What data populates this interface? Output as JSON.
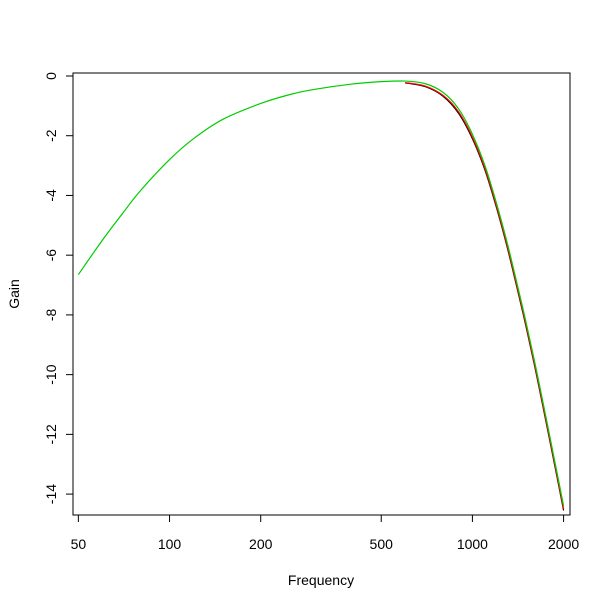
{
  "chart_data": {
    "type": "line",
    "title": "",
    "xlabel": "Frequency",
    "ylabel": "Gain",
    "x_scale": "log",
    "xlim": [
      48,
      2100
    ],
    "ylim": [
      -14.7,
      0.1
    ],
    "x_ticks": [
      50,
      100,
      200,
      500,
      1000,
      2000
    ],
    "x_tick_labels": [
      "50",
      "100",
      "200",
      "500",
      "1000",
      "2000"
    ],
    "y_ticks": [
      0,
      -2,
      -4,
      -6,
      -8,
      -10,
      -12,
      -14
    ],
    "y_tick_labels": [
      "0",
      "-2",
      "-4",
      "-6",
      "-8",
      "-10",
      "-12",
      "-14"
    ],
    "grid": false,
    "legend": "none",
    "series": [
      {
        "color": "#000000",
        "x": [
          600,
          700,
          800,
          900,
          1000,
          1100,
          1200,
          1300,
          1400,
          1500,
          1600,
          1700,
          1800,
          1900,
          2000
        ],
        "y": [
          -0.23,
          -0.36,
          -0.68,
          -1.25,
          -2.1,
          -3.15,
          -4.4,
          -5.7,
          -7.05,
          -8.35,
          -9.65,
          -10.95,
          -12.2,
          -13.4,
          -14.55
        ]
      },
      {
        "color": "#ff0000",
        "x": [
          600,
          700,
          800,
          900,
          1000,
          1100,
          1200,
          1300,
          1400,
          1500,
          1600,
          1700,
          1800,
          1900,
          2000
        ],
        "y": [
          -0.22,
          -0.34,
          -0.65,
          -1.2,
          -2.05,
          -3.1,
          -4.35,
          -5.65,
          -7.0,
          -8.3,
          -9.6,
          -10.9,
          -12.15,
          -13.35,
          -14.5
        ]
      },
      {
        "color": "#00cc00",
        "x": [
          50,
          60,
          70,
          80,
          100,
          120,
          150,
          200,
          250,
          300,
          400,
          500,
          600,
          700,
          800,
          900,
          1000,
          1100,
          1200,
          1300,
          1400,
          1500,
          1600,
          1700,
          1800,
          1900,
          2000
        ],
        "y": [
          -6.65,
          -5.5,
          -4.6,
          -3.85,
          -2.8,
          -2.1,
          -1.45,
          -0.92,
          -0.62,
          -0.45,
          -0.27,
          -0.19,
          -0.17,
          -0.26,
          -0.55,
          -1.1,
          -1.95,
          -3.0,
          -4.25,
          -5.55,
          -6.9,
          -8.2,
          -9.5,
          -10.8,
          -12.05,
          -13.25,
          -14.4
        ]
      }
    ]
  }
}
